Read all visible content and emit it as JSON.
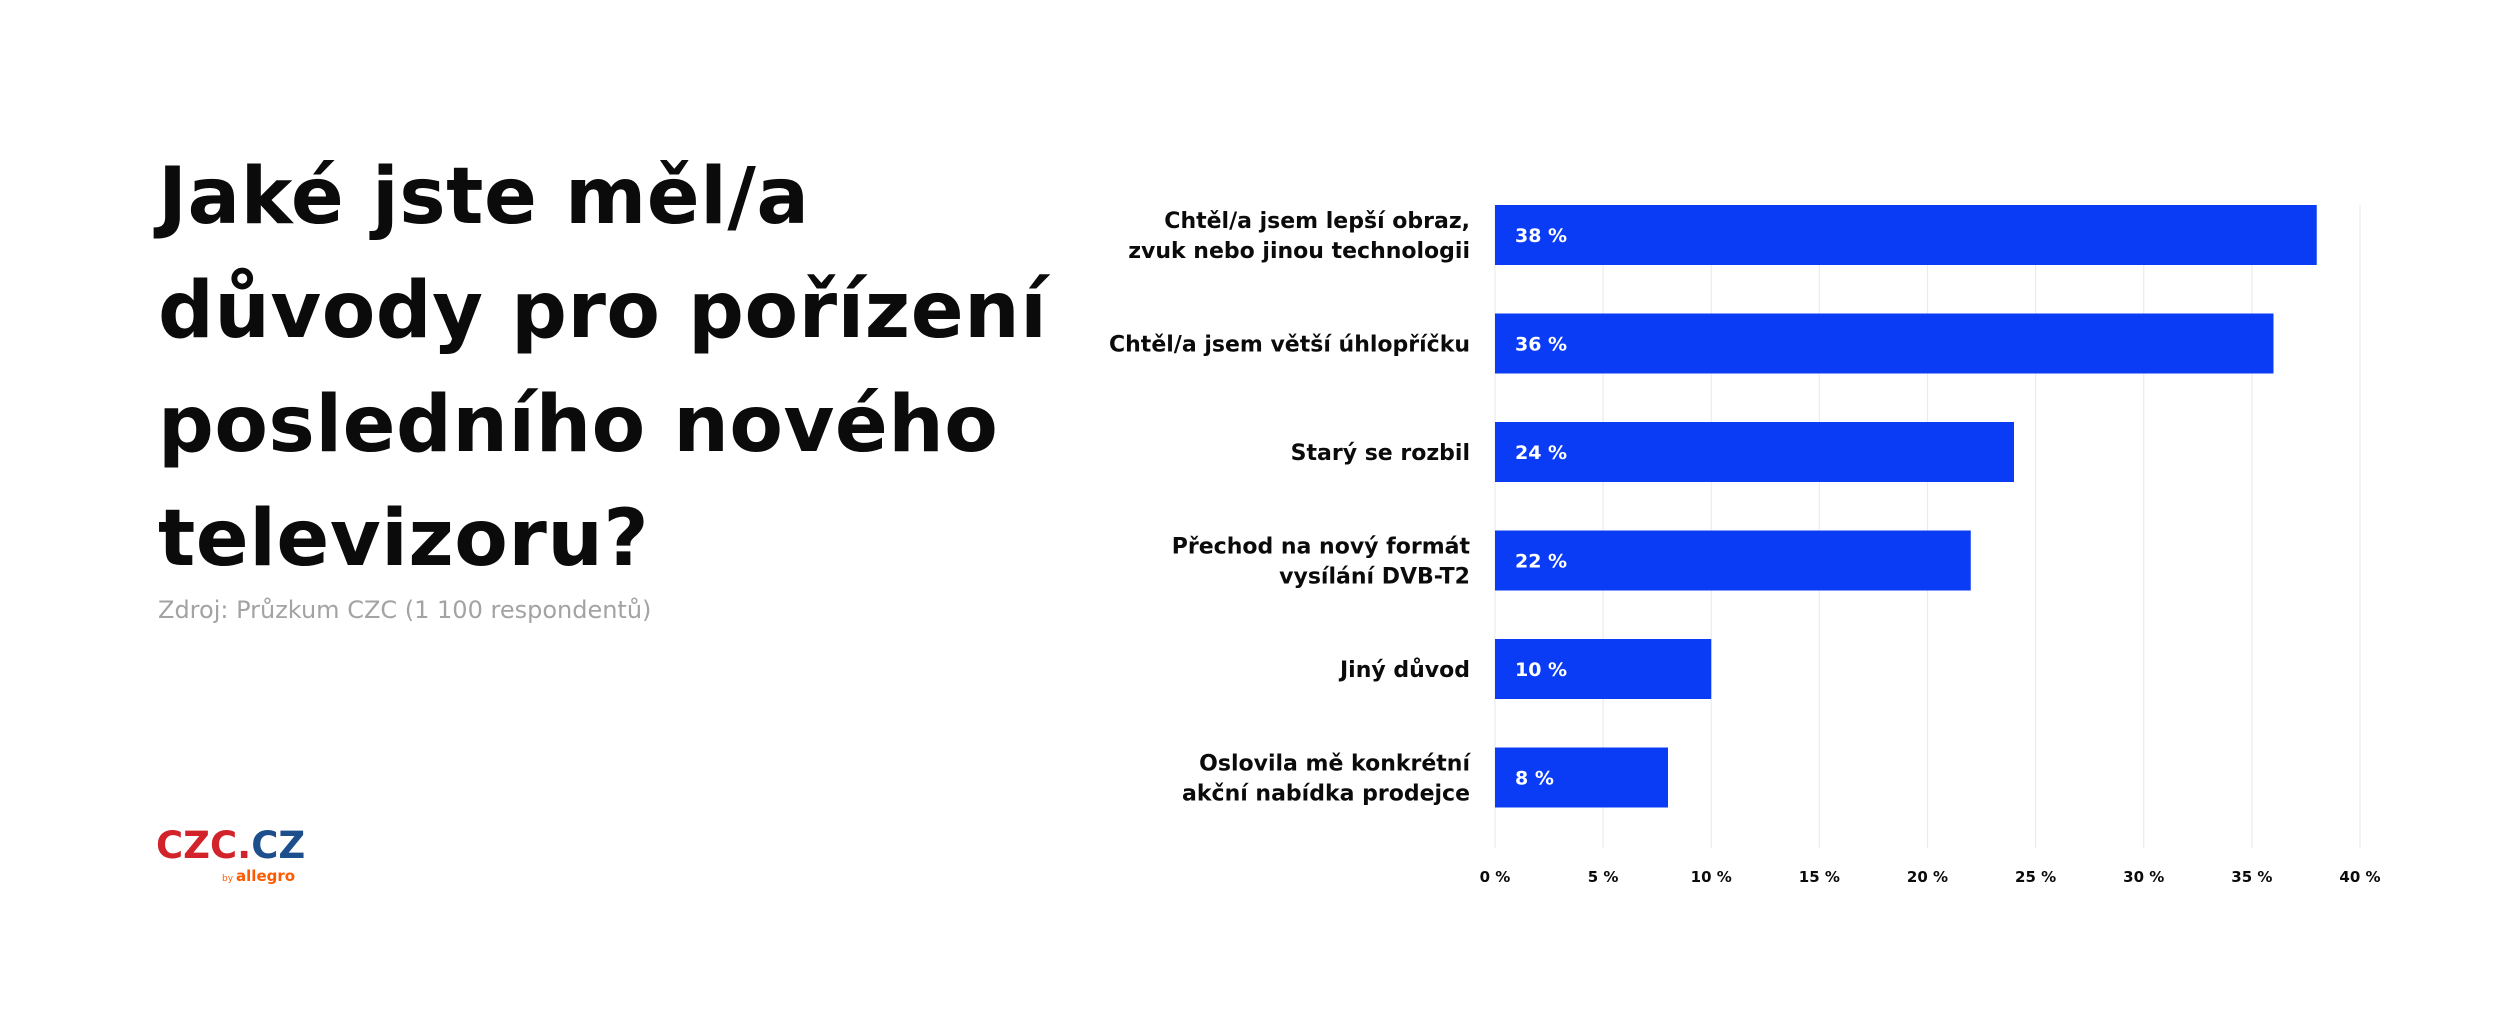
{
  "title_lines": [
    "Jaké jste měl/a",
    "důvody pro pořízení",
    "posledního nového",
    "televizoru?"
  ],
  "source": "Zdroj: Průzkum CZC (1 100 respondentů)",
  "logo": {
    "main": "CZC",
    "dot": ".",
    "suffix": "CZ",
    "by": "by",
    "sub": "allegro"
  },
  "colors": {
    "bar": "#0a3cf5",
    "grid": "#ebebeb",
    "brand_red": "#d2232a",
    "brand_blue": "#1c4f8c",
    "allegro_orange": "#ff5a00"
  },
  "chart_data": {
    "type": "bar",
    "orientation": "horizontal",
    "categories": [
      [
        "Chtěl/a jsem lepší obraz,",
        "zvuk nebo jinou technologii"
      ],
      [
        "Chtěl/a jsem větší úhlopříčku"
      ],
      [
        "Starý se rozbil"
      ],
      [
        "Přechod na nový formát",
        "vysílání DVB-T2"
      ],
      [
        "Jiný důvod"
      ],
      [
        "Oslovila mě konkrétní",
        "akční nabídka prodejce"
      ]
    ],
    "values": [
      38,
      36,
      24,
      22,
      10,
      8
    ],
    "value_labels": [
      "38 %",
      "36 %",
      "24 %",
      "22 %",
      "10 %",
      "8 %"
    ],
    "xlim": [
      0,
      40
    ],
    "ticks": [
      0,
      5,
      10,
      15,
      20,
      25,
      30,
      35,
      40
    ],
    "tick_labels": [
      "0 %",
      "5 %",
      "10 %",
      "15 %",
      "20 %",
      "25 %",
      "30 %",
      "35 %",
      "40 %"
    ],
    "grid": true
  }
}
